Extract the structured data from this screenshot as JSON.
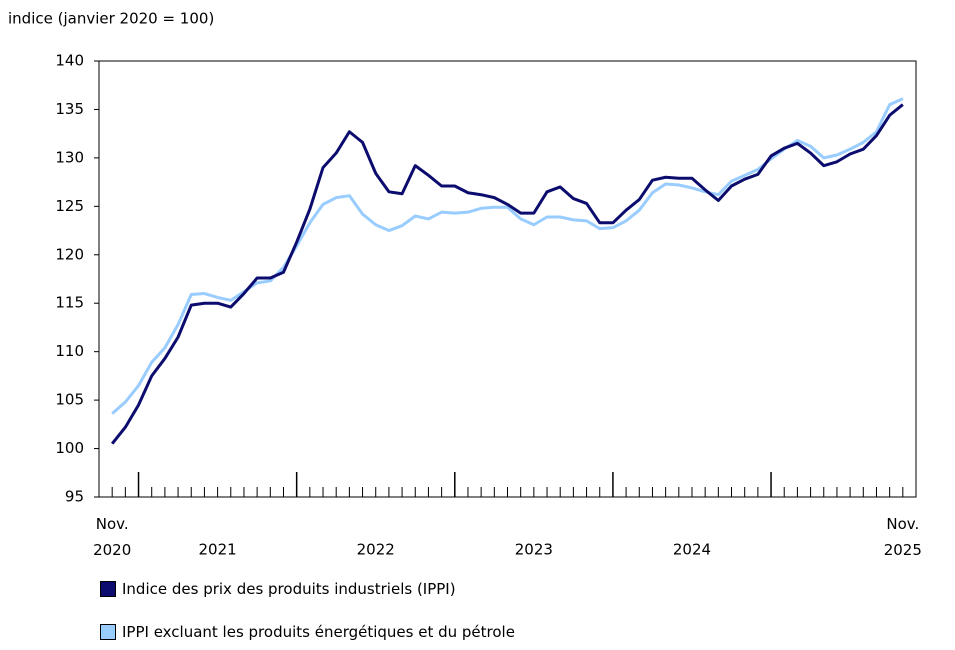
{
  "chart_data": {
    "type": "line",
    "title": "indice (janvier 2020 = 100)",
    "categories": [
      "Nov. 2020",
      null,
      null,
      null,
      null,
      null,
      null,
      null,
      null,
      null,
      null,
      null,
      null,
      null,
      null,
      null,
      null,
      null,
      null,
      null,
      null,
      null,
      null,
      null,
      null,
      null,
      null,
      null,
      null,
      null,
      null,
      null,
      null,
      null,
      null,
      null,
      null,
      null,
      null,
      null,
      null,
      null,
      null,
      null,
      null,
      null,
      null,
      null,
      null,
      null,
      null,
      null,
      null,
      null,
      null,
      null,
      null,
      null,
      null,
      null,
      "Nov. 2025"
    ],
    "year_labels": [
      "2021",
      "2022",
      "2023",
      "2024"
    ],
    "series": [
      {
        "name": "Indice des prix des produits industriels (IPPI)",
        "color": "#0c0c6e",
        "values": [
          100.5,
          102.2,
          104.5,
          107.5,
          109.3,
          111.5,
          114.8,
          115.0,
          115.0,
          114.6,
          116.0,
          117.6,
          117.6,
          118.2,
          121.3,
          124.7,
          129.0,
          130.5,
          132.7,
          131.6,
          128.4,
          126.5,
          126.3,
          129.2,
          128.2,
          127.1,
          127.1,
          126.4,
          126.2,
          125.9,
          125.2,
          124.3,
          124.3,
          126.5,
          127.0,
          125.8,
          125.3,
          123.3,
          123.3,
          124.6,
          125.7,
          127.7,
          128.0,
          127.9,
          127.9,
          126.7,
          125.6,
          127.1,
          127.8,
          128.3,
          130.2,
          131.0,
          131.5,
          130.5,
          129.2,
          129.6,
          130.4,
          130.9,
          132.3,
          134.4,
          135.5
        ]
      },
      {
        "name": "IPPI excluant les produits énergétiques et du pétrole",
        "color": "#99ccff",
        "values": [
          103.6,
          104.8,
          106.5,
          108.9,
          110.4,
          112.8,
          115.9,
          116.0,
          115.6,
          115.3,
          116.2,
          117.1,
          117.3,
          118.7,
          120.9,
          123.3,
          125.2,
          125.9,
          126.1,
          124.2,
          123.1,
          122.5,
          123.0,
          124.0,
          123.7,
          124.4,
          124.3,
          124.4,
          124.8,
          124.9,
          124.9,
          123.7,
          123.1,
          123.9,
          123.9,
          123.6,
          123.5,
          122.7,
          122.8,
          123.5,
          124.6,
          126.4,
          127.3,
          127.2,
          126.9,
          126.5,
          126.2,
          127.6,
          128.2,
          128.8,
          129.9,
          130.9,
          131.8,
          131.2,
          130.0,
          130.3,
          130.9,
          131.6,
          132.7,
          135.5,
          136.1
        ]
      }
    ],
    "ylim": [
      95,
      140
    ],
    "yticks": [
      95,
      100,
      105,
      110,
      115,
      120,
      125,
      130,
      135,
      140
    ]
  }
}
